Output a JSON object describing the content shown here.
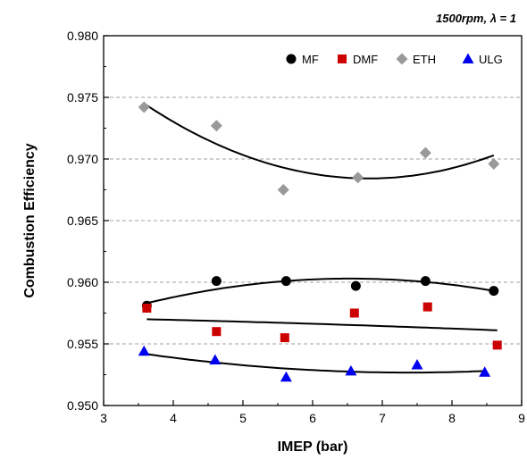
{
  "chart_data": {
    "type": "scatter",
    "annotation": "1500rpm, λ = 1",
    "xlabel": "IMEP (bar)",
    "ylabel": "Combustion Efficiency",
    "xlim": [
      3,
      9
    ],
    "ylim": [
      0.95,
      0.98
    ],
    "x_ticks": [
      "3",
      "4",
      "5",
      "6",
      "7",
      "8",
      "9"
    ],
    "y_ticks": [
      "0.950",
      "0.955",
      "0.960",
      "0.965",
      "0.970",
      "0.975",
      "0.980"
    ],
    "grid": "horizontal dashed",
    "legend_position": "top-right",
    "series": [
      {
        "name": "MF",
        "marker": "circle",
        "color": "#000000",
        "x": [
          3.62,
          4.62,
          5.62,
          6.62,
          7.62,
          8.6
        ],
        "y": [
          0.9581,
          0.9601,
          0.9601,
          0.9597,
          0.9601,
          0.9593
        ],
        "fit_y": [
          0.9583,
          0.9594,
          0.9601,
          0.9603,
          0.96,
          0.9593
        ]
      },
      {
        "name": "DMF",
        "marker": "square",
        "color": "#cc0000",
        "x": [
          3.62,
          4.62,
          5.6,
          6.6,
          7.65,
          8.65
        ],
        "y": [
          0.9579,
          0.956,
          0.9555,
          0.9575,
          0.958,
          0.9549
        ],
        "fit_y": [
          0.957,
          0.9569,
          0.9567,
          0.9565,
          0.9563,
          0.9561
        ]
      },
      {
        "name": "ETH",
        "marker": "diamond",
        "color": "#999999",
        "x": [
          3.58,
          4.62,
          5.58,
          6.65,
          7.62,
          8.6
        ],
        "y": [
          0.9742,
          0.9727,
          0.9675,
          0.9685,
          0.9705,
          0.9696
        ],
        "fit_y": [
          0.9745,
          0.9713,
          0.9693,
          0.9686,
          0.969,
          0.9703
        ]
      },
      {
        "name": "ULG",
        "marker": "triangle",
        "color": "#0000ee",
        "x": [
          3.58,
          4.6,
          5.62,
          6.55,
          7.5,
          8.47
        ],
        "y": [
          0.9544,
          0.9537,
          0.9523,
          0.9528,
          0.9533,
          0.9527
        ],
        "fit_y": [
          0.9542,
          0.9535,
          0.953,
          0.9526,
          0.9526,
          0.9528
        ]
      }
    ]
  }
}
